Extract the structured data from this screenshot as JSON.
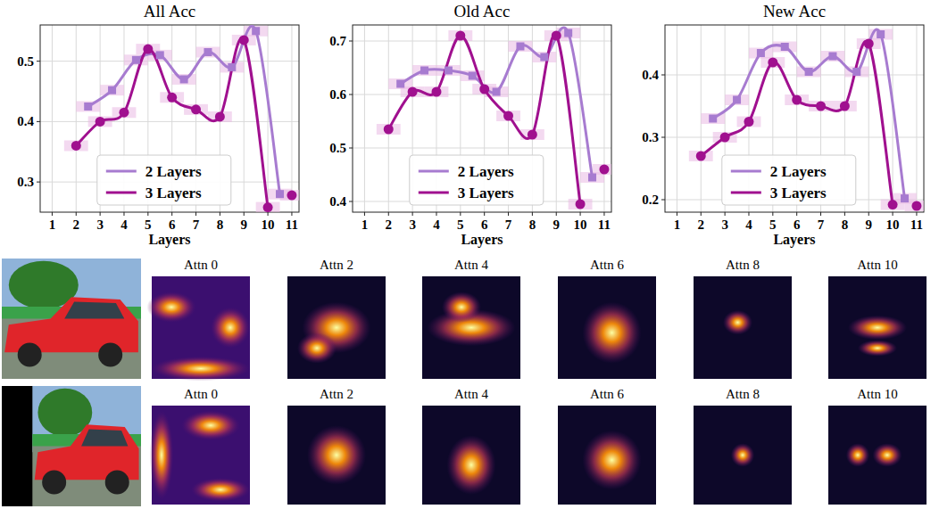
{
  "chart_data": [
    {
      "type": "line",
      "title": "All Acc",
      "x_label": "Layers",
      "xlim": [
        0.5,
        11.3
      ],
      "xticks": [
        1,
        2,
        3,
        4,
        5,
        6,
        7,
        8,
        9,
        10,
        11
      ],
      "ylim": [
        0.25,
        0.56
      ],
      "yticks": [
        0.3,
        0.4,
        0.5
      ],
      "grid": true,
      "legend": "lower center",
      "series": [
        {
          "name": "2 Layers",
          "color": "#a77bd0",
          "marker": "square",
          "x": [
            2.5,
            3.5,
            4.5,
            5.5,
            6.5,
            7.5,
            8.5,
            9.5,
            10.5
          ],
          "values": [
            0.425,
            0.452,
            0.502,
            0.51,
            0.47,
            0.515,
            0.49,
            0.55,
            0.28
          ]
        },
        {
          "name": "3 Layers",
          "color": "#a0108f",
          "marker": "circle",
          "x": [
            2,
            3,
            4,
            5,
            6,
            7,
            8,
            9,
            10,
            10.5,
            11
          ],
          "values": [
            0.36,
            0.4,
            0.415,
            0.52,
            0.44,
            0.42,
            0.408,
            0.535,
            0.258,
            null,
            0.278
          ]
        }
      ]
    },
    {
      "type": "line",
      "title": "Old Acc",
      "x_label": "Layers",
      "xlim": [
        0.5,
        11.3
      ],
      "xticks": [
        1,
        2,
        3,
        4,
        5,
        6,
        7,
        8,
        9,
        10,
        11
      ],
      "ylim": [
        0.38,
        0.73
      ],
      "yticks": [
        0.4,
        0.5,
        0.6,
        0.7
      ],
      "grid": true,
      "legend": "lower center",
      "series": [
        {
          "name": "2 Layers",
          "color": "#a77bd0",
          "marker": "square",
          "x": [
            2.5,
            3.5,
            4.5,
            5.5,
            6.5,
            7.5,
            8.5,
            9.5,
            10.5
          ],
          "values": [
            0.62,
            0.645,
            0.645,
            0.635,
            0.605,
            0.69,
            0.67,
            0.715,
            0.445
          ]
        },
        {
          "name": "3 Layers",
          "color": "#a0108f",
          "marker": "circle",
          "x": [
            2,
            3,
            4,
            5,
            6,
            7,
            8,
            9,
            10,
            10.5,
            11
          ],
          "values": [
            0.535,
            0.605,
            0.605,
            0.71,
            0.61,
            0.56,
            0.525,
            0.71,
            0.395,
            null,
            0.46
          ]
        }
      ]
    },
    {
      "type": "line",
      "title": "New Acc",
      "x_label": "Layers",
      "xlim": [
        0.5,
        11.3
      ],
      "xticks": [
        1,
        2,
        3,
        4,
        5,
        6,
        7,
        8,
        9,
        10,
        11
      ],
      "ylim": [
        0.18,
        0.48
      ],
      "yticks": [
        0.2,
        0.3,
        0.4
      ],
      "grid": true,
      "legend": "lower center",
      "series": [
        {
          "name": "2 Layers",
          "color": "#a77bd0",
          "marker": "square",
          "x": [
            2.5,
            3.5,
            4.5,
            5.5,
            6.5,
            7.5,
            8.5,
            9.5,
            10.5
          ],
          "values": [
            0.33,
            0.36,
            0.435,
            0.445,
            0.405,
            0.43,
            0.405,
            0.465,
            0.202
          ]
        },
        {
          "name": "3 Layers",
          "color": "#a0108f",
          "marker": "circle",
          "x": [
            2,
            3,
            4,
            5,
            6,
            7,
            8,
            9,
            10,
            10.5,
            11
          ],
          "values": [
            0.27,
            0.3,
            0.325,
            0.42,
            0.36,
            0.35,
            0.35,
            0.45,
            0.192,
            null,
            0.19
          ]
        }
      ]
    }
  ],
  "attention": {
    "rows": [
      {
        "titles": [
          "Attn 0",
          "Attn 2",
          "Attn 4",
          "Attn 6",
          "Attn 8",
          "Attn 10"
        ]
      },
      {
        "titles": [
          "Attn 0",
          "Attn 2",
          "Attn 4",
          "Attn 6",
          "Attn 8",
          "Attn 10"
        ]
      }
    ]
  }
}
